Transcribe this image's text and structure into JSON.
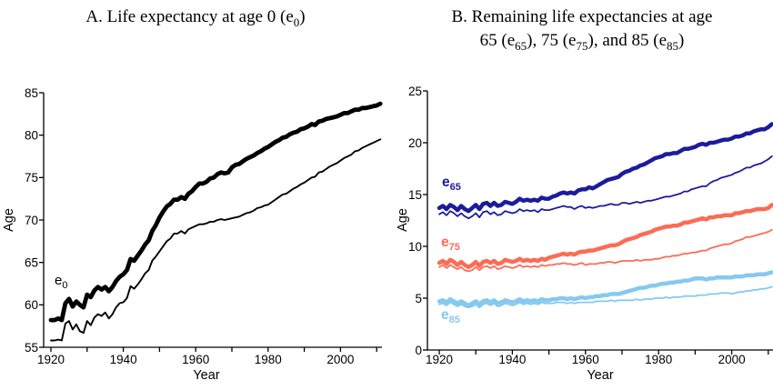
{
  "figure": {
    "background": "#ffffff",
    "text_color": "#000000"
  },
  "chart_data": [
    {
      "type": "line",
      "title": "A. Life expectancy at age 0 (e_{0})",
      "title_lines": [
        "A. Life expectancy at age 0 (e_{0})"
      ],
      "xlabel": "Year",
      "ylabel": "Age",
      "x_start": 1920,
      "x_end": 2011,
      "xlim": [
        1920,
        2011
      ],
      "ylim": [
        55,
        85
      ],
      "grid": false,
      "y_ticks": [
        55,
        60,
        65,
        70,
        75,
        80,
        85
      ],
      "x_ticks": [
        1920,
        1930,
        1940,
        1950,
        1960,
        1970,
        1980,
        1990,
        2000,
        2010
      ],
      "x_tick_labels": [
        1920,
        1940,
        1960,
        1980,
        2000
      ],
      "annotations": [
        {
          "text": "e_{0}",
          "color": "#000000"
        }
      ],
      "series": [
        {
          "id": "e0-thick",
          "name": "e0 (thick line)",
          "color": "#000000",
          "line_width": 4.8,
          "values": [
            58.2,
            58.2,
            58.4,
            58.2,
            60.2,
            60.7,
            59.8,
            60.4,
            60.0,
            59.7,
            61.2,
            60.9,
            61.7,
            62.1,
            61.8,
            62.1,
            61.6,
            62.1,
            62.8,
            63.3,
            63.6,
            64.1,
            65.4,
            65.2,
            65.8,
            66.4,
            67.1,
            67.6,
            68.7,
            69.4,
            70.3,
            71.0,
            71.6,
            71.9,
            72.4,
            72.4,
            72.7,
            72.5,
            73.1,
            73.4,
            73.9,
            74.3,
            74.3,
            74.5,
            74.9,
            75.0,
            75.4,
            75.6,
            75.5,
            75.6,
            76.2,
            76.5,
            76.6,
            76.9,
            77.2,
            77.4,
            77.6,
            77.9,
            78.1,
            78.4,
            78.6,
            78.9,
            79.2,
            79.4,
            79.7,
            79.8,
            80.1,
            80.3,
            80.4,
            80.7,
            80.8,
            81.0,
            81.3,
            81.2,
            81.6,
            81.7,
            81.9,
            82.0,
            82.1,
            82.2,
            82.4,
            82.6,
            82.6,
            82.8,
            83.0,
            83.0,
            83.2,
            83.2,
            83.3,
            83.4,
            83.5,
            83.7
          ]
        },
        {
          "id": "e0-thin",
          "name": "e0 (thin line)",
          "color": "#000000",
          "line_width": 1.9,
          "values": [
            55.8,
            55.8,
            55.9,
            55.8,
            57.8,
            58.1,
            57.1,
            57.7,
            56.9,
            56.7,
            58.1,
            57.6,
            58.5,
            58.9,
            58.7,
            59.1,
            58.4,
            58.9,
            59.7,
            60.2,
            60.3,
            60.8,
            62.2,
            61.9,
            62.4,
            63.0,
            63.7,
            64.1,
            65.2,
            65.7,
            66.3,
            66.9,
            67.5,
            67.8,
            68.4,
            68.4,
            68.7,
            68.4,
            68.9,
            69.1,
            69.3,
            69.5,
            69.5,
            69.6,
            69.8,
            69.8,
            70.0,
            70.1,
            70.0,
            70.1,
            70.2,
            70.3,
            70.4,
            70.6,
            70.8,
            70.9,
            71.1,
            71.4,
            71.5,
            71.7,
            71.8,
            72.1,
            72.4,
            72.7,
            73.0,
            73.1,
            73.4,
            73.7,
            73.9,
            74.2,
            74.4,
            74.7,
            75.0,
            75.1,
            75.6,
            75.7,
            76.0,
            76.3,
            76.5,
            76.7,
            77.0,
            77.3,
            77.5,
            77.7,
            78.1,
            78.2,
            78.5,
            78.7,
            78.9,
            79.1,
            79.3,
            79.5
          ]
        }
      ]
    },
    {
      "type": "line",
      "title": "B. Remaining life expectancies at age 65 (e_{65}), 75 (e_{75}), and 85 (e_{85})",
      "title_lines": [
        "B. Remaining life expectancies at age",
        "65 (e_{65}), 75 (e_{75}), and 85 (e_{85})"
      ],
      "xlabel": "Year",
      "ylabel": "Age",
      "x_start": 1920,
      "x_end": 2011,
      "xlim": [
        1920,
        2011
      ],
      "ylim": [
        0,
        25
      ],
      "grid": false,
      "y_ticks": [
        0,
        5,
        10,
        15,
        20,
        25
      ],
      "x_ticks": [
        1920,
        1930,
        1940,
        1950,
        1960,
        1970,
        1980,
        1990,
        2000,
        2010
      ],
      "x_tick_labels": [
        1920,
        1940,
        1960,
        1980,
        2000
      ],
      "annotations": [
        {
          "text": "e_{65}",
          "color": "#1c1c9a"
        },
        {
          "text": "e_{75}",
          "color": "#fb6c55"
        },
        {
          "text": "e_{85}",
          "color": "#86c9ee"
        }
      ],
      "series": [
        {
          "id": "e65-thick",
          "name": "e65 (thick line)",
          "color": "#1c1c9a",
          "line_width": 4.5,
          "values": [
            13.7,
            13.9,
            13.6,
            14.0,
            13.8,
            13.5,
            13.9,
            13.6,
            13.4,
            13.7,
            14.0,
            13.6,
            14.1,
            14.2,
            13.9,
            14.2,
            13.9,
            14.0,
            14.3,
            14.2,
            14.1,
            14.3,
            14.6,
            14.4,
            14.5,
            14.4,
            14.5,
            14.4,
            14.7,
            14.6,
            14.6,
            14.8,
            14.9,
            15.1,
            15.2,
            15.1,
            15.2,
            15.1,
            15.4,
            15.5,
            15.5,
            15.7,
            15.6,
            15.8,
            16.0,
            16.2,
            16.4,
            16.5,
            16.6,
            16.7,
            17.0,
            17.2,
            17.3,
            17.5,
            17.6,
            17.8,
            17.9,
            18.1,
            18.3,
            18.5,
            18.6,
            18.7,
            18.9,
            18.9,
            19.0,
            19.0,
            19.2,
            19.4,
            19.4,
            19.5,
            19.6,
            19.8,
            19.9,
            19.8,
            20.0,
            20.0,
            20.1,
            20.2,
            20.3,
            20.3,
            20.4,
            20.6,
            20.6,
            20.7,
            20.9,
            20.9,
            21.1,
            21.2,
            21.3,
            21.3,
            21.5,
            21.8
          ]
        },
        {
          "id": "e65-thin",
          "name": "e65 (thin line)",
          "color": "#1c1c9a",
          "line_width": 1.8,
          "values": [
            13.1,
            13.3,
            13.0,
            13.4,
            13.2,
            12.9,
            13.2,
            12.9,
            12.7,
            12.9,
            13.2,
            12.8,
            13.3,
            13.4,
            13.1,
            13.3,
            13.0,
            13.1,
            13.4,
            13.3,
            13.2,
            13.3,
            13.6,
            13.4,
            13.5,
            13.4,
            13.5,
            13.3,
            13.6,
            13.5,
            13.5,
            13.6,
            13.7,
            13.8,
            13.9,
            13.8,
            13.8,
            13.6,
            13.8,
            13.9,
            13.7,
            13.8,
            13.7,
            13.8,
            13.9,
            13.9,
            14.0,
            14.1,
            14.0,
            14.0,
            14.2,
            14.2,
            14.1,
            14.2,
            14.3,
            14.2,
            14.3,
            14.4,
            14.4,
            14.5,
            14.6,
            14.7,
            14.8,
            14.8,
            14.9,
            15.0,
            15.1,
            15.3,
            15.3,
            15.5,
            15.6,
            15.7,
            15.8,
            15.8,
            16.1,
            16.3,
            16.4,
            16.6,
            16.7,
            16.8,
            16.9,
            17.1,
            17.2,
            17.4,
            17.6,
            17.6,
            17.8,
            17.9,
            18.0,
            18.2,
            18.4,
            18.7
          ]
        },
        {
          "id": "e75-thick",
          "name": "e75 (thick line)",
          "color": "#fb6c55",
          "line_width": 4.5,
          "values": [
            8.4,
            8.6,
            8.3,
            8.7,
            8.5,
            8.2,
            8.5,
            8.2,
            8.0,
            8.2,
            8.5,
            8.1,
            8.5,
            8.6,
            8.4,
            8.6,
            8.3,
            8.4,
            8.7,
            8.6,
            8.5,
            8.6,
            8.8,
            8.6,
            8.7,
            8.6,
            8.7,
            8.6,
            8.8,
            8.7,
            8.9,
            9.0,
            9.1,
            9.2,
            9.3,
            9.2,
            9.3,
            9.2,
            9.4,
            9.5,
            9.5,
            9.6,
            9.6,
            9.7,
            9.8,
            9.9,
            10.0,
            10.1,
            10.1,
            10.2,
            10.4,
            10.6,
            10.7,
            10.8,
            10.9,
            11.1,
            11.2,
            11.3,
            11.4,
            11.6,
            11.7,
            11.8,
            11.9,
            11.9,
            12.0,
            12.0,
            12.1,
            12.3,
            12.3,
            12.4,
            12.5,
            12.6,
            12.7,
            12.6,
            12.8,
            12.8,
            12.9,
            12.9,
            13.0,
            13.0,
            13.0,
            13.2,
            13.2,
            13.3,
            13.4,
            13.4,
            13.5,
            13.6,
            13.6,
            13.6,
            13.7,
            14.0
          ]
        },
        {
          "id": "e75-thin",
          "name": "e75 (thin line)",
          "color": "#fb6c55",
          "line_width": 1.8,
          "values": [
            8.0,
            8.2,
            7.9,
            8.2,
            8.0,
            7.8,
            8.0,
            7.7,
            7.6,
            7.7,
            8.0,
            7.7,
            8.0,
            8.1,
            7.9,
            8.1,
            7.8,
            7.9,
            8.1,
            8.0,
            7.9,
            8.0,
            8.2,
            8.0,
            8.1,
            8.0,
            8.1,
            8.0,
            8.2,
            8.1,
            8.2,
            8.2,
            8.3,
            8.3,
            8.4,
            8.3,
            8.3,
            8.2,
            8.3,
            8.4,
            8.2,
            8.3,
            8.3,
            8.3,
            8.4,
            8.4,
            8.5,
            8.5,
            8.4,
            8.5,
            8.6,
            8.6,
            8.6,
            8.6,
            8.7,
            8.6,
            8.7,
            8.7,
            8.7,
            8.8,
            8.8,
            8.9,
            9.0,
            9.0,
            9.1,
            9.1,
            9.2,
            9.3,
            9.3,
            9.4,
            9.4,
            9.5,
            9.6,
            9.6,
            9.8,
            9.9,
            10.0,
            10.1,
            10.2,
            10.2,
            10.3,
            10.5,
            10.6,
            10.7,
            10.9,
            10.9,
            11.0,
            11.1,
            11.2,
            11.3,
            11.4,
            11.6
          ]
        },
        {
          "id": "e85-thick",
          "name": "e85 (thick line)",
          "color": "#86c9ee",
          "line_width": 4.5,
          "values": [
            4.7,
            4.8,
            4.6,
            4.9,
            4.7,
            4.5,
            4.7,
            4.5,
            4.3,
            4.5,
            4.7,
            4.4,
            4.7,
            4.8,
            4.6,
            4.8,
            4.5,
            4.6,
            4.8,
            4.7,
            4.6,
            4.7,
            4.9,
            4.7,
            4.8,
            4.7,
            4.8,
            4.7,
            4.9,
            4.8,
            4.8,
            4.9,
            4.9,
            5.0,
            5.0,
            4.9,
            5.0,
            4.9,
            5.0,
            5.1,
            5.0,
            5.1,
            5.1,
            5.2,
            5.2,
            5.3,
            5.3,
            5.4,
            5.4,
            5.4,
            5.5,
            5.6,
            5.7,
            5.8,
            5.9,
            6.0,
            6.0,
            6.1,
            6.2,
            6.2,
            6.3,
            6.4,
            6.4,
            6.5,
            6.5,
            6.6,
            6.6,
            6.7,
            6.7,
            6.8,
            6.9,
            6.9,
            6.9,
            6.8,
            6.9,
            6.9,
            7.0,
            7.0,
            7.0,
            7.0,
            7.0,
            7.1,
            7.1,
            7.1,
            7.2,
            7.2,
            7.2,
            7.3,
            7.3,
            7.3,
            7.4,
            7.5
          ]
        },
        {
          "id": "e85-thin",
          "name": "e85 (thin line)",
          "color": "#86c9ee",
          "line_width": 1.8,
          "values": [
            4.4,
            4.5,
            4.3,
            4.6,
            4.4,
            4.2,
            4.4,
            4.2,
            4.1,
            4.2,
            4.4,
            4.1,
            4.4,
            4.5,
            4.3,
            4.5,
            4.2,
            4.3,
            4.5,
            4.4,
            4.3,
            4.4,
            4.6,
            4.4,
            4.5,
            4.4,
            4.5,
            4.4,
            4.6,
            4.5,
            4.5,
            4.5,
            4.6,
            4.6,
            4.6,
            4.5,
            4.6,
            4.5,
            4.6,
            4.6,
            4.6,
            4.6,
            4.6,
            4.7,
            4.7,
            4.7,
            4.7,
            4.8,
            4.7,
            4.8,
            4.8,
            4.8,
            4.8,
            4.8,
            4.9,
            4.8,
            4.9,
            4.9,
            4.9,
            5.0,
            5.0,
            5.0,
            5.1,
            5.0,
            5.1,
            5.1,
            5.1,
            5.2,
            5.2,
            5.2,
            5.2,
            5.3,
            5.3,
            5.3,
            5.4,
            5.4,
            5.4,
            5.5,
            5.5,
            5.5,
            5.4,
            5.5,
            5.6,
            5.6,
            5.7,
            5.7,
            5.8,
            5.8,
            5.9,
            5.9,
            6.0,
            6.1
          ]
        }
      ]
    }
  ]
}
